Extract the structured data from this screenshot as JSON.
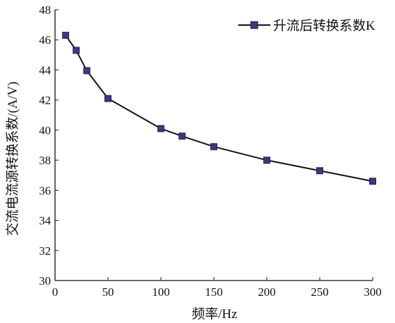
{
  "chart_data": {
    "type": "line",
    "x": [
      10,
      20,
      30,
      50,
      100,
      120,
      150,
      200,
      250,
      300
    ],
    "series": [
      {
        "name": "升流后转换系数K",
        "values": [
          46.3,
          45.3,
          43.95,
          42.1,
          40.1,
          39.6,
          38.9,
          38.0,
          37.3,
          36.6
        ]
      }
    ],
    "xlabel": "频率/Hz",
    "ylabel": "交流电流源转换系数/(A/V)",
    "xlim": [
      0,
      300
    ],
    "ylim": [
      30,
      48
    ],
    "x_ticks": [
      0,
      50,
      100,
      150,
      200,
      250,
      300
    ],
    "y_ticks": [
      30,
      32,
      34,
      36,
      38,
      40,
      42,
      44,
      46,
      48
    ],
    "grid": false,
    "legend_position": "top-right",
    "colors": {
      "line": "#111111",
      "marker": "#3a3a80",
      "axis": "#111111"
    }
  }
}
